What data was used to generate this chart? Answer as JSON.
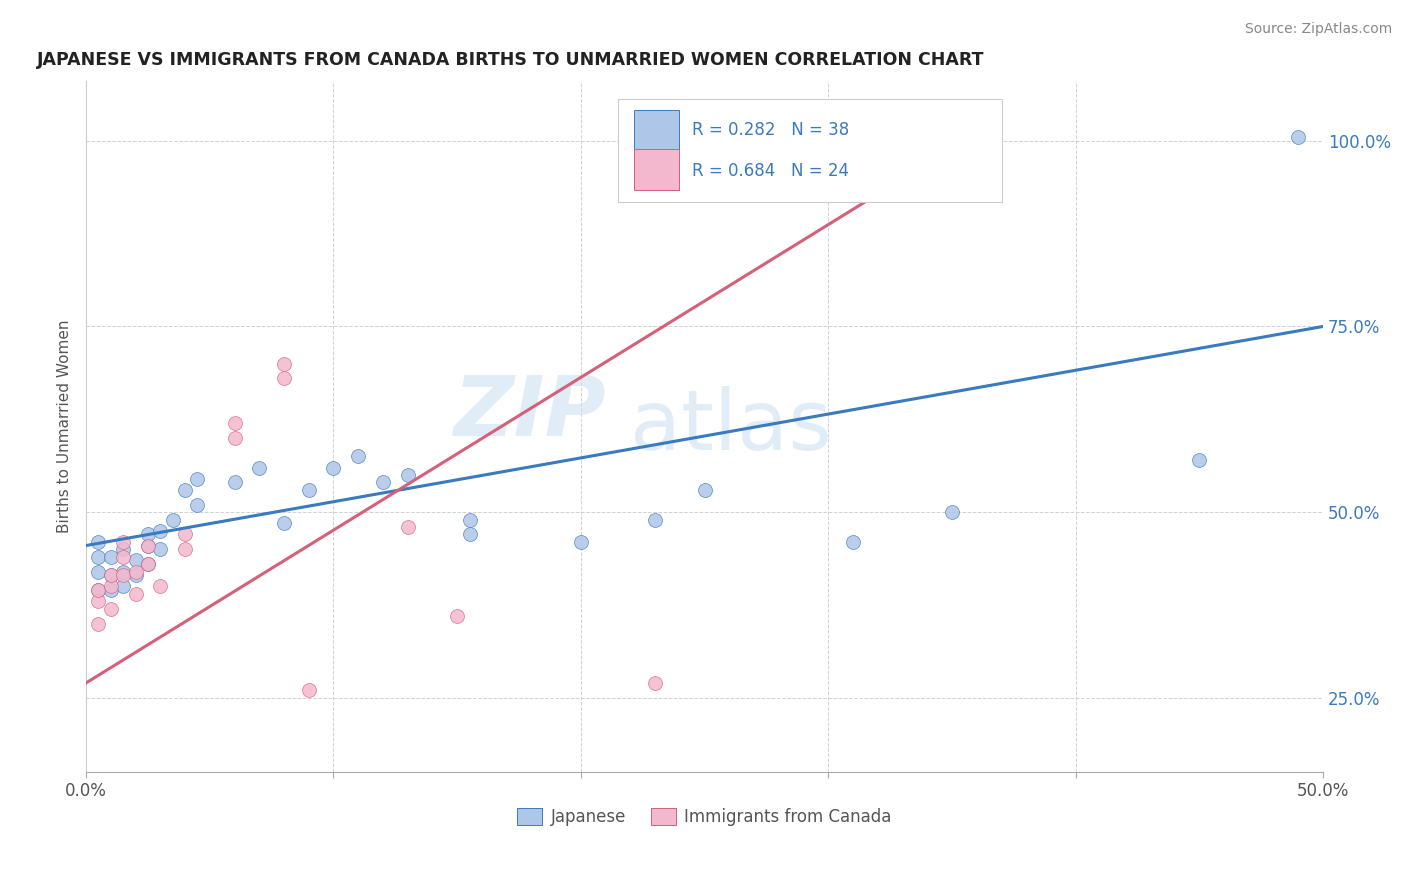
{
  "title": "JAPANESE VS IMMIGRANTS FROM CANADA BIRTHS TO UNMARRIED WOMEN CORRELATION CHART",
  "source": "Source: ZipAtlas.com",
  "ylabel": "Births to Unmarried Women",
  "xlim": [
    0.0,
    0.5
  ],
  "ylim": [
    0.15,
    1.08
  ],
  "ytick_labels": [
    "25.0%",
    "50.0%",
    "75.0%",
    "100.0%"
  ],
  "ytick_positions": [
    0.25,
    0.5,
    0.75,
    1.0
  ],
  "R_japanese": 0.282,
  "N_japanese": 38,
  "R_canada": 0.684,
  "N_canada": 24,
  "japanese_color": "#aec6e8",
  "canada_color": "#f4b8ce",
  "japanese_line_color": "#3a7abf",
  "canada_line_color": "#d4607a",
  "legend_label_japanese": "Japanese",
  "legend_label_canada": "Immigrants from Canada",
  "watermark_zip": "ZIP",
  "watermark_atlas": "atlas",
  "japanese_scatter": [
    [
      0.005,
      0.395
    ],
    [
      0.005,
      0.42
    ],
    [
      0.005,
      0.44
    ],
    [
      0.005,
      0.46
    ],
    [
      0.01,
      0.395
    ],
    [
      0.01,
      0.415
    ],
    [
      0.01,
      0.44
    ],
    [
      0.015,
      0.4
    ],
    [
      0.015,
      0.42
    ],
    [
      0.015,
      0.45
    ],
    [
      0.02,
      0.415
    ],
    [
      0.02,
      0.435
    ],
    [
      0.025,
      0.43
    ],
    [
      0.025,
      0.455
    ],
    [
      0.025,
      0.47
    ],
    [
      0.03,
      0.45
    ],
    [
      0.03,
      0.475
    ],
    [
      0.035,
      0.49
    ],
    [
      0.04,
      0.53
    ],
    [
      0.045,
      0.51
    ],
    [
      0.045,
      0.545
    ],
    [
      0.06,
      0.54
    ],
    [
      0.07,
      0.56
    ],
    [
      0.08,
      0.485
    ],
    [
      0.09,
      0.53
    ],
    [
      0.1,
      0.56
    ],
    [
      0.11,
      0.575
    ],
    [
      0.12,
      0.54
    ],
    [
      0.13,
      0.55
    ],
    [
      0.155,
      0.47
    ],
    [
      0.155,
      0.49
    ],
    [
      0.2,
      0.46
    ],
    [
      0.23,
      0.49
    ],
    [
      0.25,
      0.53
    ],
    [
      0.31,
      0.46
    ],
    [
      0.35,
      0.5
    ],
    [
      0.45,
      0.57
    ],
    [
      0.49,
      1.005
    ]
  ],
  "canada_scatter": [
    [
      0.005,
      0.35
    ],
    [
      0.005,
      0.38
    ],
    [
      0.005,
      0.395
    ],
    [
      0.01,
      0.37
    ],
    [
      0.01,
      0.4
    ],
    [
      0.01,
      0.415
    ],
    [
      0.015,
      0.415
    ],
    [
      0.015,
      0.44
    ],
    [
      0.015,
      0.46
    ],
    [
      0.02,
      0.39
    ],
    [
      0.02,
      0.42
    ],
    [
      0.025,
      0.43
    ],
    [
      0.025,
      0.455
    ],
    [
      0.03,
      0.4
    ],
    [
      0.04,
      0.45
    ],
    [
      0.04,
      0.47
    ],
    [
      0.06,
      0.6
    ],
    [
      0.06,
      0.62
    ],
    [
      0.08,
      0.68
    ],
    [
      0.08,
      0.7
    ],
    [
      0.09,
      0.26
    ],
    [
      0.13,
      0.48
    ],
    [
      0.15,
      0.36
    ],
    [
      0.23,
      0.27
    ]
  ],
  "background_color": "#ffffff",
  "grid_color": "#cccccc"
}
